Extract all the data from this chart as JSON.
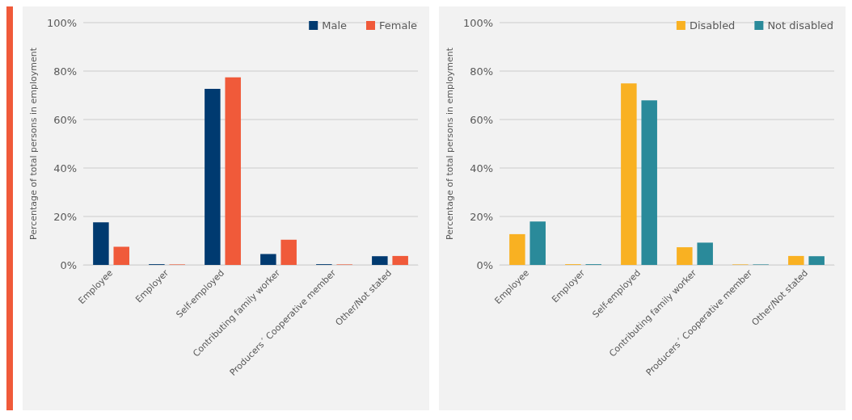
{
  "chart_data": [
    {
      "type": "bar",
      "ylabel": "Percentage of total persons in employment",
      "categories": [
        "Employee",
        "Employer",
        "Self-employed",
        "Contributing family worker",
        "Producers´ Cooperative member",
        "Other/Not stated"
      ],
      "series": [
        {
          "name": "Male",
          "color": "#003a70",
          "values": [
            17.6,
            0.3,
            72.7,
            4.5,
            0.3,
            3.6
          ]
        },
        {
          "name": "Female",
          "color": "#f05a3a",
          "values": [
            7.5,
            0.2,
            77.4,
            10.4,
            0.2,
            3.7
          ]
        }
      ],
      "ylim": [
        0,
        100
      ],
      "yticks": [
        {
          "value": 0,
          "label": "0%"
        },
        {
          "value": 20,
          "label": "20%"
        },
        {
          "value": 40,
          "label": "40%"
        },
        {
          "value": 60,
          "label": "60%"
        },
        {
          "value": 80,
          "label": "80%"
        },
        {
          "value": 100,
          "label": "100%"
        }
      ],
      "grid": "y",
      "legend": "top right"
    },
    {
      "type": "bar",
      "ylabel": "Percentage of total persons in employment",
      "categories": [
        "Employee",
        "Employer",
        "Self-employed",
        "Contributing family worker",
        "Producers´ Cooperative member",
        "Other/Not stated"
      ],
      "series": [
        {
          "name": "Disabled",
          "color": "#f9b122",
          "values": [
            12.7,
            0.3,
            74.9,
            7.3,
            0.2,
            3.7
          ]
        },
        {
          "name": "Not disabled",
          "color": "#2a8a9a",
          "values": [
            17.9,
            0.3,
            67.9,
            9.2,
            0.2,
            3.6
          ]
        }
      ],
      "ylim": [
        0,
        100
      ],
      "yticks": [
        {
          "value": 0,
          "label": "0%"
        },
        {
          "value": 20,
          "label": "20%"
        },
        {
          "value": 40,
          "label": "40%"
        },
        {
          "value": 60,
          "label": "60%"
        },
        {
          "value": 80,
          "label": "80%"
        },
        {
          "value": 100,
          "label": "100%"
        }
      ],
      "grid": "y",
      "legend": "top right"
    }
  ]
}
